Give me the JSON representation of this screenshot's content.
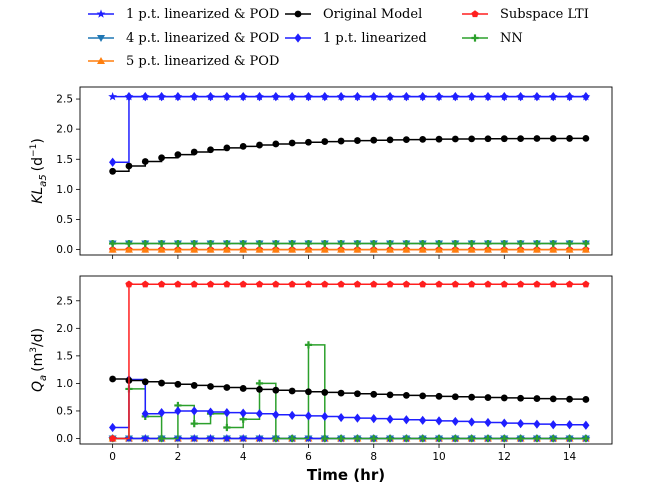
{
  "chart_data": {
    "type": "line",
    "xlabel": "Time (hr)",
    "xlim": [
      -1,
      15.3
    ],
    "xticks": [
      "0",
      "2",
      "4",
      "6",
      "8",
      "10",
      "12",
      "14"
    ],
    "legend": [
      {
        "name": "1 p.t. linearized & POD",
        "color": "#1f1fff",
        "marker": "star"
      },
      {
        "name": "Original Model",
        "color": "#000000",
        "marker": "circle"
      },
      {
        "name": "Subspace LTI",
        "color": "#ff1f1f",
        "marker": "pentagon"
      },
      {
        "name": "4 p.t. linearized & POD",
        "color": "#1f77b4",
        "marker": "tri-down"
      },
      {
        "name": "1 p.t. linearized",
        "color": "#1f1fff",
        "marker": "diamond"
      },
      {
        "name": "NN",
        "color": "#2ca02c",
        "marker": "plus"
      },
      {
        "name": "5 p.t. linearized & POD",
        "color": "#ff7f0e",
        "marker": "tri-up"
      }
    ],
    "subplots": [
      {
        "ylabel_main": "KL",
        "ylabel_sub": "a5",
        "ylabel_unit": "(d",
        "ylabel_sup": "−1",
        "ylabel_close": ")",
        "ylim": [
          -0.09,
          2.7
        ],
        "yticks": [
          "0.0",
          "0.5",
          "1.0",
          "1.5",
          "2.0",
          "2.5"
        ],
        "series": [
          {
            "name": "Subspace LTI",
            "color": "#ff1f1f",
            "marker": "pentagon",
            "step": true,
            "initial": 0.0,
            "final": 0.0
          },
          {
            "name": "5 p.t. linearized & POD",
            "color": "#ff7f0e",
            "marker": "tri-up",
            "step": true,
            "initial": 0.0,
            "final": 0.0
          },
          {
            "name": "4 p.t. linearized & POD",
            "color": "#1f77b4",
            "marker": "tri-down",
            "step": true,
            "initial": 0.1,
            "final": 0.1
          },
          {
            "name": "NN",
            "color": "#2ca02c",
            "marker": "plus",
            "step": true,
            "initial": 0.1,
            "final": 0.1
          },
          {
            "name": "Original Model",
            "color": "#000000",
            "marker": "circle",
            "step": true,
            "initial": 1.3,
            "final": 1.85,
            "decay": 0.35,
            "from_first": true
          },
          {
            "name": "1 p.t. linearized",
            "color": "#1f1fff",
            "marker": "diamond",
            "step": true,
            "initial": 1.45,
            "final": 2.54
          },
          {
            "name": "1 p.t. linearized & POD",
            "color": "#1f1fff",
            "marker": "star",
            "step": true,
            "initial": 2.54,
            "final": 2.54
          }
        ]
      },
      {
        "ylabel_main": "Q",
        "ylabel_sub": "a",
        "ylabel_unit": "(m",
        "ylabel_sup": "3",
        "ylabel_close": "/d)",
        "ylim": [
          -0.1,
          2.95
        ],
        "yticks": [
          "0.0",
          "0.5",
          "1.0",
          "1.5",
          "2.0",
          "2.5"
        ],
        "series": [
          {
            "name": "5 p.t. linearized & POD",
            "color": "#ff7f0e",
            "marker": "tri-up",
            "step": true,
            "initial": 0.0,
            "final": 0.0
          },
          {
            "name": "4 p.t. linearized & POD",
            "color": "#1f77b4",
            "marker": "tri-down",
            "step": true,
            "initial": 0.0,
            "final": 0.0
          },
          {
            "name": "1 p.t. linearized & POD",
            "color": "#1f1fff",
            "marker": "star",
            "step": true,
            "initial": 0.0,
            "final": 0.0
          },
          {
            "name": "NN",
            "color": "#2ca02c",
            "marker": "plus",
            "step": true,
            "values": [
              0.0,
              0.9,
              0.4,
              0.0,
              0.6,
              0.27,
              0.45,
              0.2,
              0.35,
              1.0,
              0.0,
              0.0,
              1.7,
              0.0,
              0.0,
              0.0,
              0.0,
              0.0,
              0.0,
              0.0,
              0.0,
              0.0,
              0.0,
              0.0,
              0.0,
              0.0,
              0.0,
              0.0,
              0.0,
              0.0
            ]
          },
          {
            "name": "1 p.t. linearized",
            "color": "#1f1fff",
            "marker": "diamond",
            "step": true,
            "values": [
              0.2,
              1.07,
              0.45,
              0.47,
              0.5,
              0.5,
              0.48,
              0.47,
              0.46,
              0.45,
              0.43,
              0.42,
              0.41,
              0.4,
              0.38,
              0.37,
              0.36,
              0.35,
              0.34,
              0.33,
              0.32,
              0.31,
              0.3,
              0.29,
              0.28,
              0.27,
              0.26,
              0.25,
              0.25,
              0.24
            ]
          },
          {
            "name": "Original Model",
            "color": "#000000",
            "marker": "circle",
            "step": true,
            "initial": 1.08,
            "final": 0.63,
            "decay": 0.12,
            "from_first": true
          },
          {
            "name": "Subspace LTI",
            "color": "#ff1f1f",
            "marker": "pentagon",
            "step": true,
            "values": [
              0.0,
              2.8,
              2.8,
              2.8,
              2.8,
              2.8,
              2.8,
              2.8,
              2.8,
              2.8,
              2.8,
              2.8,
              2.8,
              2.8,
              2.8,
              2.8,
              2.8,
              2.8,
              2.8,
              2.8,
              2.8,
              2.8,
              2.8,
              2.8,
              2.8,
              2.8,
              2.8,
              2.8,
              2.8,
              2.8
            ]
          }
        ]
      }
    ],
    "time_step": 0.5,
    "time_points": 30
  }
}
